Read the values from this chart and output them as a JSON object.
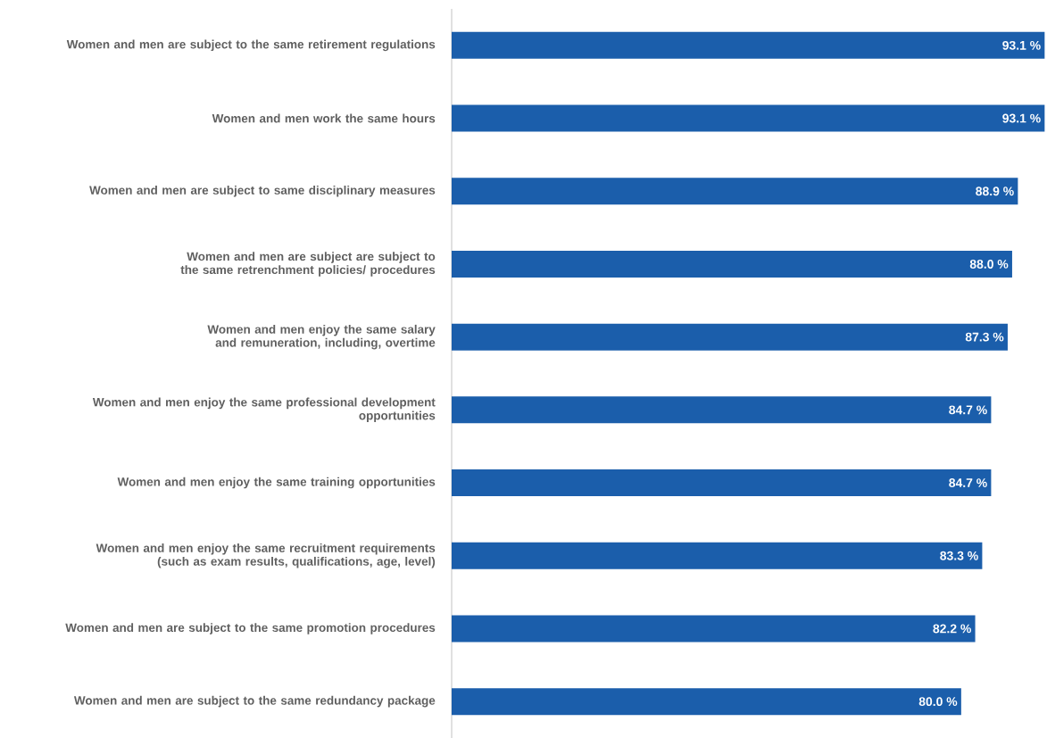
{
  "chart_data": {
    "type": "bar",
    "orientation": "horizontal",
    "categories": [
      "Women and men are subject to the same retirement regulations",
      "Women and men work the same hours",
      "Women and men are subject to same disciplinary measures",
      "Women and men are subject are subject to the same retrenchment policies/ procedures",
      "Women and men enjoy the same salary and remuneration, including, overtime",
      "Women and men enjoy the same professional development opportunities",
      "Women and men enjoy the same training opportunities",
      "Women and men enjoy the same recruitment requirements (such as exam results, qualifications, age, level)",
      "Women and men are subject to the same promotion procedures",
      "Women and men are subject to the same redundancy package"
    ],
    "values": [
      93.1,
      93.1,
      88.9,
      88.0,
      87.3,
      84.7,
      84.7,
      83.3,
      82.2,
      80.0
    ],
    "value_labels": [
      "93.1 %",
      "93.1 %",
      "88.9 %",
      "88.0 %",
      "87.3 %",
      "84.7 %",
      "84.7 %",
      "83.3 %",
      "82.2 %",
      "80.0 %"
    ],
    "color": "#1b5eab"
  }
}
